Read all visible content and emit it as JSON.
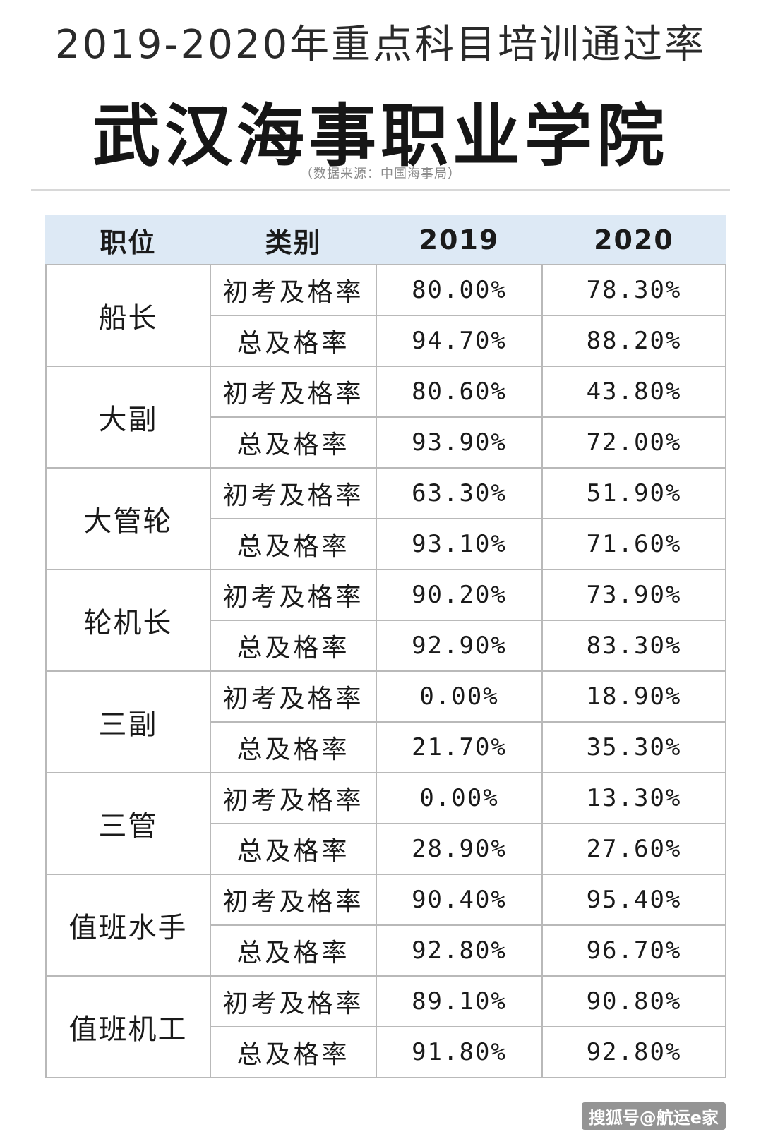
{
  "header": {
    "title": "2019-2020年重点科目培训通过率",
    "school": "武汉海事职业学院",
    "source": "（数据来源：中国海事局）"
  },
  "table": {
    "columns": [
      "职位",
      "类别",
      "2019",
      "2020"
    ],
    "groups": [
      {
        "position": "船长",
        "rows": [
          {
            "category": "初考及格率",
            "y2019": "80.00%",
            "y2020": "78.30%"
          },
          {
            "category": "总及格率",
            "y2019": "94.70%",
            "y2020": "88.20%"
          }
        ]
      },
      {
        "position": "大副",
        "rows": [
          {
            "category": "初考及格率",
            "y2019": "80.60%",
            "y2020": "43.80%"
          },
          {
            "category": "总及格率",
            "y2019": "93.90%",
            "y2020": "72.00%"
          }
        ]
      },
      {
        "position": "大管轮",
        "rows": [
          {
            "category": "初考及格率",
            "y2019": "63.30%",
            "y2020": "51.90%"
          },
          {
            "category": "总及格率",
            "y2019": "93.10%",
            "y2020": "71.60%"
          }
        ]
      },
      {
        "position": "轮机长",
        "rows": [
          {
            "category": "初考及格率",
            "y2019": "90.20%",
            "y2020": "73.90%"
          },
          {
            "category": "总及格率",
            "y2019": "92.90%",
            "y2020": "83.30%"
          }
        ]
      },
      {
        "position": "三副",
        "rows": [
          {
            "category": "初考及格率",
            "y2019": "0.00%",
            "y2020": "18.90%"
          },
          {
            "category": "总及格率",
            "y2019": "21.70%",
            "y2020": "35.30%"
          }
        ]
      },
      {
        "position": "三管",
        "rows": [
          {
            "category": "初考及格率",
            "y2019": "0.00%",
            "y2020": "13.30%"
          },
          {
            "category": "总及格率",
            "y2019": "28.90%",
            "y2020": "27.60%"
          }
        ]
      },
      {
        "position": "值班水手",
        "rows": [
          {
            "category": "初考及格率",
            "y2019": "90.40%",
            "y2020": "95.40%"
          },
          {
            "category": "总及格率",
            "y2019": "92.80%",
            "y2020": "96.70%"
          }
        ]
      },
      {
        "position": "值班机工",
        "rows": [
          {
            "category": "初考及格率",
            "y2019": "89.10%",
            "y2020": "90.80%"
          },
          {
            "category": "总及格率",
            "y2019": "91.80%",
            "y2020": "92.80%"
          }
        ]
      }
    ]
  },
  "footer": {
    "watermark": "搜狐号@航运e家"
  }
}
